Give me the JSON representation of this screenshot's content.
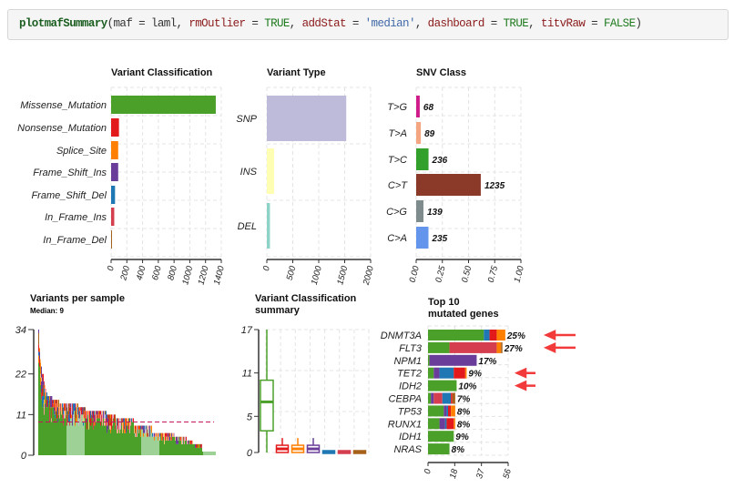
{
  "code": {
    "fn": "plotmafSummary",
    "a1": "(maf = laml, ",
    "k1": "rmOutlier",
    "e1": " = ",
    "v1": "TRUE",
    "s1": ", ",
    "k2": "addStat",
    "e2": " = ",
    "v2": "'median'",
    "s2": ", ",
    "k3": "dashboard",
    "e3": " = ",
    "v3": "TRUE",
    "s3": ", ",
    "k4": "titvRaw",
    "e4": " = ",
    "v4": "FALSE",
    "end": ")"
  },
  "chart_data": [
    {
      "type": "bar",
      "orientation": "horizontal",
      "title": "Variant Classification",
      "categories": [
        "Missense_Mutation",
        "Nonsense_Mutation",
        "Splice_Site",
        "Frame_Shift_Ins",
        "Frame_Shift_Del",
        "In_Frame_Ins",
        "In_Frame_Del"
      ],
      "values": [
        1330,
        100,
        90,
        90,
        50,
        40,
        5
      ],
      "colors": [
        "#4ba02a",
        "#e31a1c",
        "#ff7f00",
        "#6a3d9a",
        "#1f78b4",
        "#d53e4f",
        "#a6611a"
      ],
      "xlim": [
        0,
        1400
      ],
      "xticks": [
        "0",
        "200",
        "400",
        "600",
        "800",
        "1000",
        "1200",
        "1400"
      ]
    },
    {
      "type": "bar",
      "orientation": "horizontal",
      "title": "Variant Type",
      "categories": [
        "SNP",
        "INS",
        "DEL"
      ],
      "values": [
        1530,
        140,
        60
      ],
      "colors": [
        "#bebada",
        "#ffffb3",
        "#8dd3c7"
      ],
      "xlim": [
        0,
        2000
      ],
      "xticks": [
        "0",
        "500",
        "1000",
        "1500",
        "2000"
      ]
    },
    {
      "type": "bar",
      "orientation": "horizontal",
      "title": "SNV Class",
      "categories": [
        "T>G",
        "T>A",
        "T>C",
        "C>T",
        "C>G",
        "C>A"
      ],
      "values": [
        68,
        89,
        236,
        1235,
        139,
        235
      ],
      "labels": [
        "68",
        "89",
        "236",
        "1235",
        "139",
        "235"
      ],
      "colors": [
        "#d01c8b",
        "#f4a582",
        "#33a02c",
        "#8b3a2a",
        "#7f8c8d",
        "#6495ed"
      ],
      "xlim": [
        0,
        1
      ],
      "xticks": [
        "0.00",
        "0.25",
        "0.50",
        "0.75",
        "1.00"
      ]
    },
    {
      "type": "bar",
      "title": "Variants per sample",
      "subtitle": "Median: 9",
      "median": 9,
      "ylim": [
        0,
        34
      ],
      "yticks": [
        "0",
        "11",
        "22",
        "34"
      ],
      "samples_runs": [
        [
          34,
          1
        ],
        [
          29,
          1
        ],
        [
          26,
          1
        ],
        [
          24,
          1
        ],
        [
          22,
          2
        ],
        [
          20,
          1
        ],
        [
          19,
          1
        ],
        [
          18,
          1
        ],
        [
          17,
          1
        ],
        [
          16,
          6
        ],
        [
          15,
          7
        ],
        [
          14,
          21
        ],
        [
          13,
          8
        ],
        [
          12,
          23
        ],
        [
          11,
          10
        ],
        [
          10,
          20
        ],
        [
          8,
          20
        ],
        [
          6,
          25
        ],
        [
          5,
          13
        ],
        [
          4,
          7
        ],
        [
          3,
          10
        ],
        [
          1,
          15
        ]
      ],
      "light_groups": [
        [
          31,
          51
        ],
        [
          113,
          133
        ],
        [
          181,
          201
        ]
      ]
    },
    {
      "type": "box",
      "title": "Variant Classification",
      "title2": "summary",
      "ylim": [
        0,
        17
      ],
      "yticks": [
        "0",
        "5",
        "11",
        "17"
      ],
      "boxes": [
        {
          "min": 0,
          "q1": 3,
          "median": 7,
          "q3": 10,
          "max": 17,
          "color": "#4ba02a"
        },
        {
          "min": 0,
          "q1": 0,
          "median": 0.5,
          "q3": 1,
          "max": 2,
          "color": "#e31a1c"
        },
        {
          "min": 0,
          "q1": 0,
          "median": 0.5,
          "q3": 1,
          "max": 2,
          "color": "#ff7f00"
        },
        {
          "min": 0,
          "q1": 0,
          "median": 0.5,
          "q3": 1,
          "max": 2,
          "color": "#6a3d9a"
        },
        {
          "min": 0,
          "q1": 0,
          "median": 0,
          "q3": 0,
          "max": 0,
          "color": "#1f78b4"
        },
        {
          "min": 0,
          "q1": 0,
          "median": 0,
          "q3": 0,
          "max": 0,
          "color": "#d53e4f"
        },
        {
          "min": 0,
          "q1": 0,
          "median": 0,
          "q3": 0,
          "max": 0,
          "color": "#a6611a"
        }
      ]
    },
    {
      "type": "bar",
      "orientation": "horizontal",
      "stacked": true,
      "title": "Top 10",
      "title2": "mutated genes",
      "xlim": [
        0,
        56
      ],
      "xticks": [
        "0",
        "18",
        "37",
        "56"
      ],
      "genes": [
        {
          "name": "DNMT3A",
          "pct": "25%",
          "arrow": true,
          "parts": [
            [
              39,
              "#4ba02a"
            ],
            [
              4,
              "#1f78b4"
            ],
            [
              5,
              "#e31a1c"
            ],
            [
              6,
              "#ff7f00"
            ]
          ]
        },
        {
          "name": "FLT3",
          "pct": "27%",
          "arrow": true,
          "parts": [
            [
              15,
              "#4ba02a"
            ],
            [
              33,
              "#d53e4f"
            ],
            [
              3,
              "#ff7f00"
            ],
            [
              1,
              "#a6611a"
            ]
          ]
        },
        {
          "name": "NPM1",
          "pct": "17%",
          "arrow": false,
          "parts": [
            [
              1,
              "#4ba02a"
            ],
            [
              33,
              "#6a3d9a"
            ]
          ]
        },
        {
          "name": "TET2",
          "pct": "9%",
          "arrow": true,
          "parts": [
            [
              4,
              "#4ba02a"
            ],
            [
              4,
              "#6a3d9a"
            ],
            [
              10,
              "#1f78b4"
            ],
            [
              8,
              "#e31a1c"
            ],
            [
              1,
              "#ff7f00"
            ]
          ]
        },
        {
          "name": "IDH2",
          "pct": "10%",
          "arrow": true,
          "parts": [
            [
              20,
              "#4ba02a"
            ]
          ]
        },
        {
          "name": "CEBPA",
          "pct": "7%",
          "arrow": false,
          "parts": [
            [
              2,
              "#4ba02a"
            ],
            [
              2,
              "#6a3d9a"
            ],
            [
              6,
              "#d53e4f"
            ],
            [
              6,
              "#1f78b4"
            ],
            [
              1,
              "#e31a1c"
            ],
            [
              2,
              "#a6611a"
            ]
          ]
        },
        {
          "name": "TP53",
          "pct": "8%",
          "arrow": false,
          "parts": [
            [
              11,
              "#4ba02a"
            ],
            [
              2,
              "#6a3d9a"
            ],
            [
              1,
              "#1f78b4"
            ],
            [
              2,
              "#e31a1c"
            ],
            [
              3,
              "#ff7f00"
            ]
          ]
        },
        {
          "name": "RUNX1",
          "pct": "8%",
          "arrow": false,
          "parts": [
            [
              8,
              "#4ba02a"
            ],
            [
              4,
              "#6a3d9a"
            ],
            [
              1,
              "#1f78b4"
            ],
            [
              5,
              "#e31a1c"
            ],
            [
              1,
              "#ff7f00"
            ]
          ]
        },
        {
          "name": "IDH1",
          "pct": "9%",
          "arrow": false,
          "parts": [
            [
              18,
              "#4ba02a"
            ]
          ]
        },
        {
          "name": "NRAS",
          "pct": "8%",
          "arrow": false,
          "parts": [
            [
              15,
              "#4ba02a"
            ]
          ]
        }
      ]
    }
  ]
}
